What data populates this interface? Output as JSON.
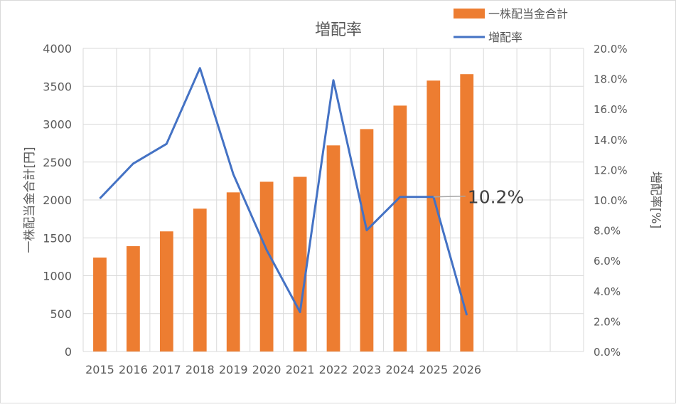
{
  "chart_data": {
    "type": "bar",
    "title": "増配率",
    "categories": [
      "2015",
      "2016",
      "2017",
      "2018",
      "2019",
      "2020",
      "2021",
      "2022",
      "2023",
      "2024",
      "2025",
      "2026"
    ],
    "x_extra_slots": 3,
    "series": [
      {
        "name": "一株配当金合計",
        "type": "bar",
        "axis": "left",
        "color": "#ED7D31",
        "values": [
          1240,
          1390,
          1585,
          1885,
          2100,
          2240,
          2305,
          2720,
          2935,
          3245,
          3575,
          3660
        ]
      },
      {
        "name": "増配率",
        "type": "line",
        "axis": "right",
        "color": "#4472C4",
        "values": [
          0.101,
          0.124,
          0.137,
          0.187,
          0.117,
          0.067,
          0.026,
          0.179,
          0.08,
          0.102,
          0.102,
          0.024
        ]
      }
    ],
    "ylabel": "一株配当金合計[円]",
    "y2label": "増配率[%]",
    "ylim": [
      0,
      4000
    ],
    "y_ticks": [
      "0",
      "500",
      "1000",
      "1500",
      "2000",
      "2500",
      "3000",
      "3500",
      "4000"
    ],
    "y2lim": [
      0,
      0.2
    ],
    "y2_ticks": [
      "0.0%",
      "2.0%",
      "4.0%",
      "6.0%",
      "8.0%",
      "10.0%",
      "12.0%",
      "14.0%",
      "16.0%",
      "18.0%",
      "20.0%"
    ],
    "grid": true,
    "legend_position": "top-right",
    "annotation": {
      "text": "10.2%",
      "series": 1,
      "index": 10
    }
  }
}
